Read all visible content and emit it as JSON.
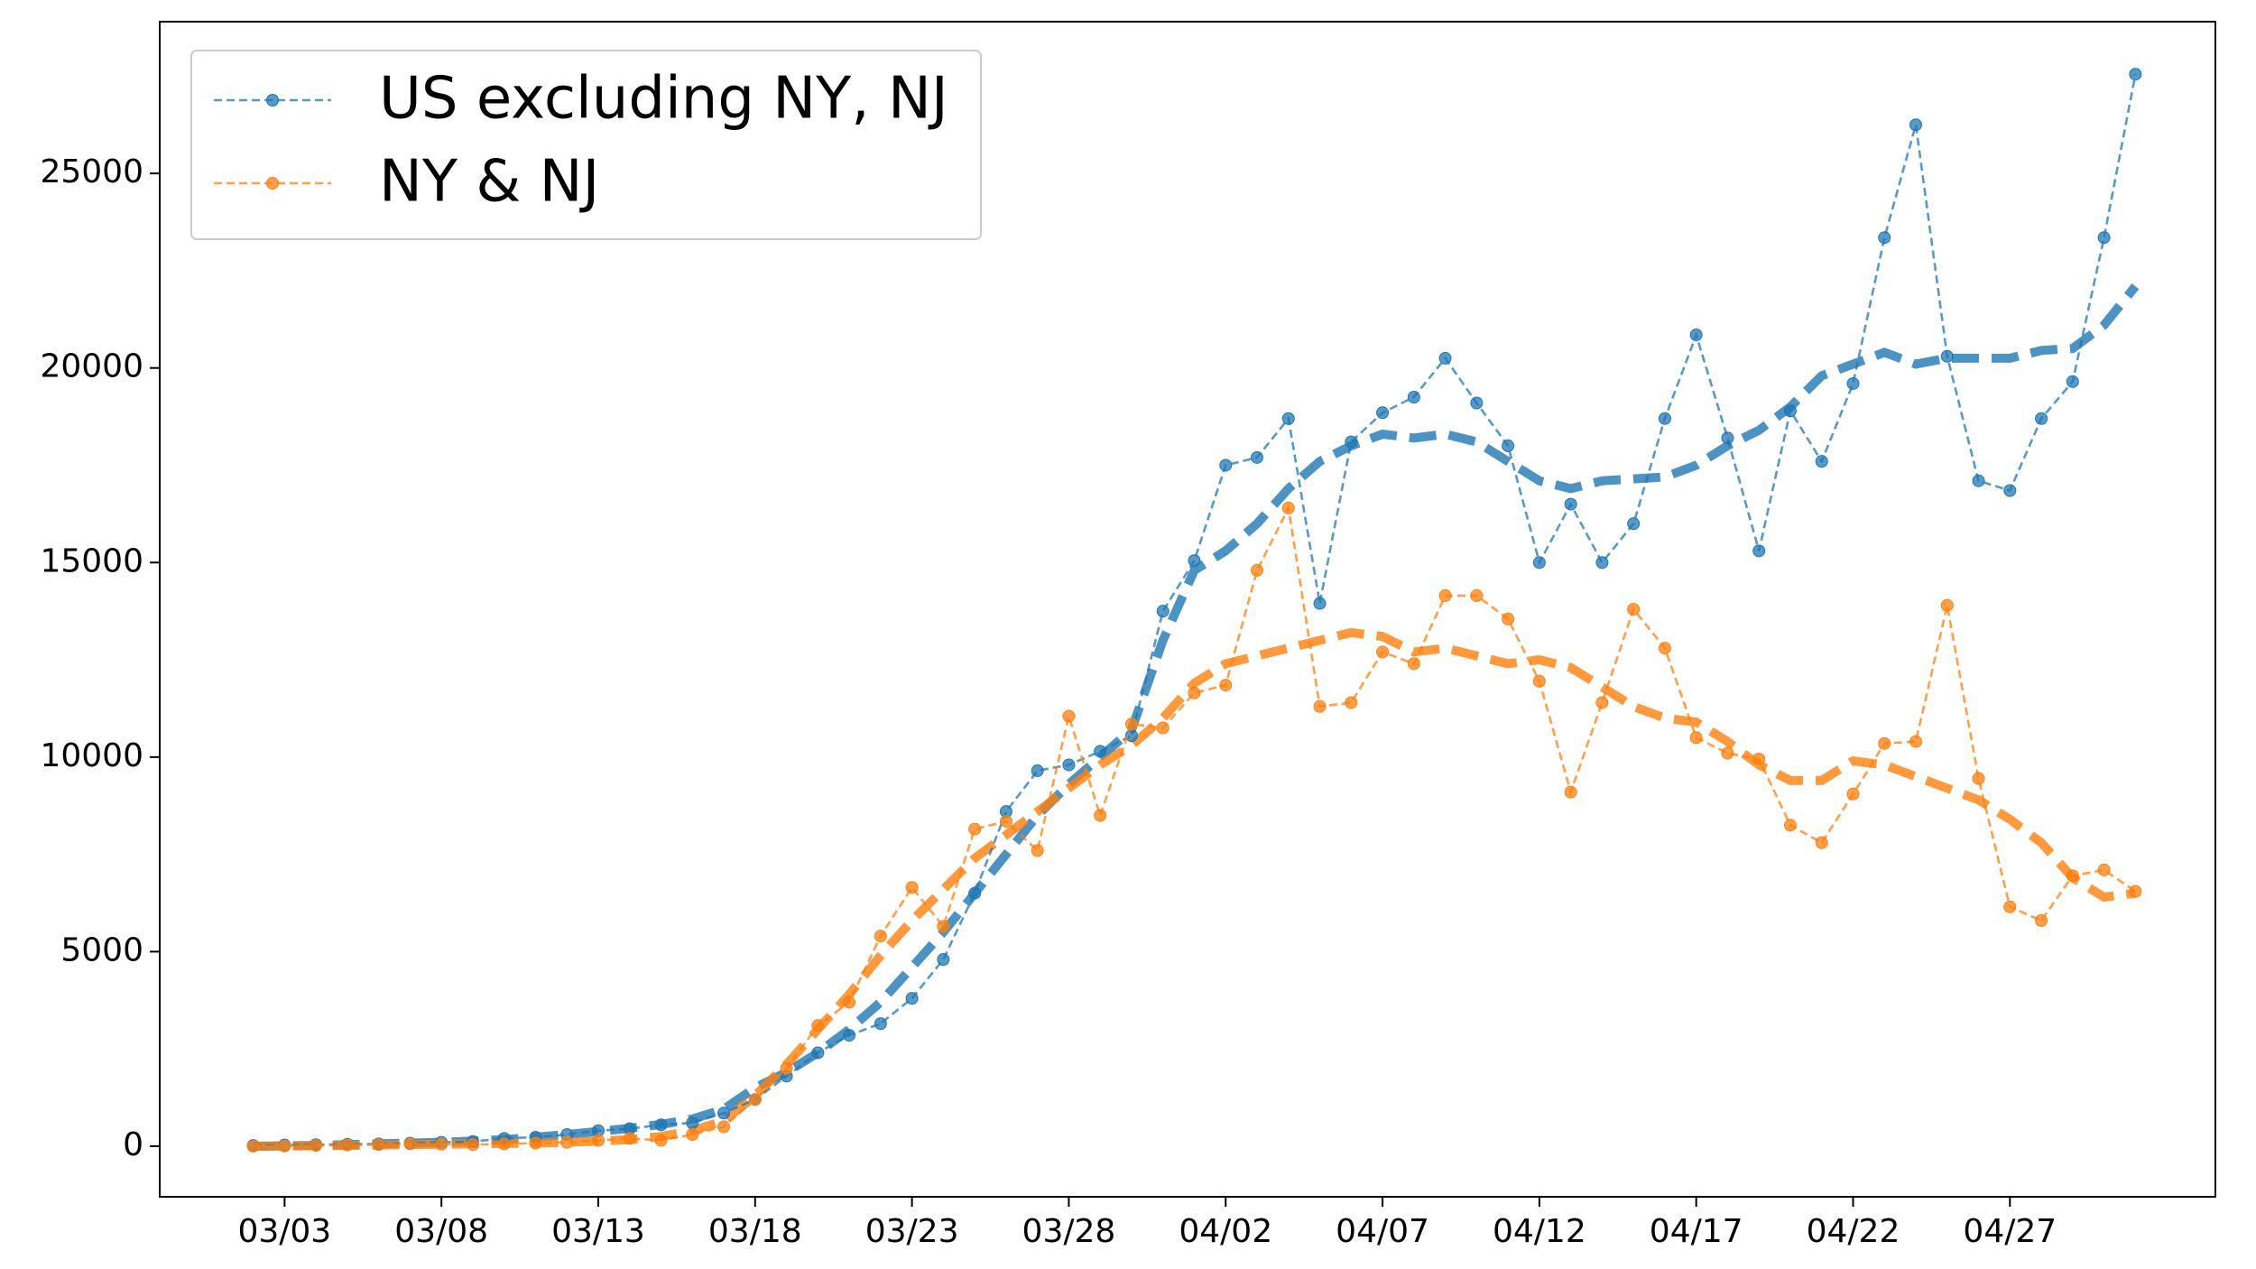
{
  "chart_data": {
    "type": "line",
    "categories": [
      null,
      "03/03",
      null,
      null,
      null,
      null,
      "03/08",
      null,
      null,
      null,
      null,
      "03/13",
      null,
      null,
      null,
      null,
      "03/18",
      null,
      null,
      null,
      null,
      "03/23",
      null,
      null,
      null,
      null,
      "03/28",
      null,
      null,
      null,
      null,
      "04/02",
      null,
      null,
      null,
      null,
      "04/07",
      null,
      null,
      null,
      null,
      "04/12",
      null,
      null,
      null,
      null,
      "04/17",
      null,
      null,
      null,
      null,
      "04/22",
      null,
      null,
      null,
      null,
      "04/27",
      null,
      null,
      null,
      null
    ],
    "series": [
      {
        "name": "US excluding NY, NJ",
        "color": "#1f77b4",
        "markers": true,
        "linewidth": "thin",
        "values": [
          20,
          30,
          40,
          50,
          60,
          80,
          100,
          120,
          200,
          230,
          300,
          400,
          450,
          550,
          600,
          850,
          1200,
          1800,
          2400,
          2850,
          3150,
          3800,
          4800,
          6500,
          8600,
          9650,
          9800,
          10150,
          10550,
          13750,
          15050,
          17500,
          17700,
          18700,
          13950,
          18100,
          18850,
          19250,
          20250,
          19100,
          18000,
          15000,
          16500,
          15000,
          16000,
          18700,
          20850,
          18200,
          15300,
          18900,
          17600,
          19600,
          23350,
          26250,
          20300,
          17100,
          16850,
          18700,
          19650,
          23350,
          27550
        ]
      },
      {
        "name": "NY & NJ",
        "color": "#ff7f0e",
        "markers": true,
        "linewidth": "thin",
        "values": [
          0,
          5,
          20,
          30,
          40,
          60,
          50,
          40,
          60,
          80,
          100,
          150,
          200,
          150,
          300,
          500,
          1200,
          2000,
          3100,
          3700,
          5400,
          6650,
          5650,
          8150,
          8350,
          7600,
          11050,
          8500,
          10850,
          10750,
          11650,
          11850,
          14800,
          16400,
          11300,
          11400,
          12700,
          12400,
          14150,
          14150,
          13550,
          11950,
          9100,
          11400,
          13800,
          12800,
          10500,
          10100,
          9950,
          8250,
          7800,
          9050,
          10350,
          10400,
          13900,
          9450,
          6150,
          5800,
          6950,
          7100,
          6550
        ]
      },
      {
        "color": "#1f77b4",
        "markers": false,
        "linewidth": "thick",
        "values": [
          0,
          10,
          20,
          40,
          60,
          80,
          100,
          130,
          170,
          230,
          300,
          380,
          460,
          560,
          700,
          950,
          1500,
          1900,
          2400,
          3000,
          3700,
          4600,
          5500,
          6500,
          7500,
          8500,
          9300,
          10000,
          10700,
          13000,
          14800,
          15300,
          16000,
          16900,
          17600,
          18000,
          18300,
          18200,
          18300,
          18100,
          17600,
          17100,
          16900,
          17100,
          17150,
          17200,
          17500,
          18000,
          18400,
          19000,
          19800,
          20100,
          20400,
          20100,
          20250,
          20250,
          20250,
          20450,
          20500,
          21100,
          22100
        ]
      },
      {
        "color": "#ff7f0e",
        "markers": false,
        "linewidth": "thick",
        "values": [
          0,
          5,
          10,
          20,
          30,
          40,
          50,
          60,
          70,
          80,
          100,
          130,
          170,
          250,
          400,
          650,
          1300,
          2100,
          3000,
          3900,
          4900,
          5800,
          6600,
          7400,
          8000,
          8600,
          9200,
          9800,
          10300,
          11000,
          11900,
          12400,
          12600,
          12800,
          13000,
          13200,
          13100,
          12700,
          12800,
          12600,
          12400,
          12500,
          12300,
          11800,
          11300,
          11000,
          10900,
          10400,
          9800,
          9400,
          9400,
          9900,
          9800,
          9500,
          9200,
          8900,
          8400,
          7800,
          6900,
          6400,
          6500
        ]
      }
    ],
    "ylim": [
      -1300,
      28900
    ],
    "yticks": [
      0,
      5000,
      10000,
      15000,
      20000,
      25000
    ],
    "grid": false,
    "legend": "upper left"
  }
}
